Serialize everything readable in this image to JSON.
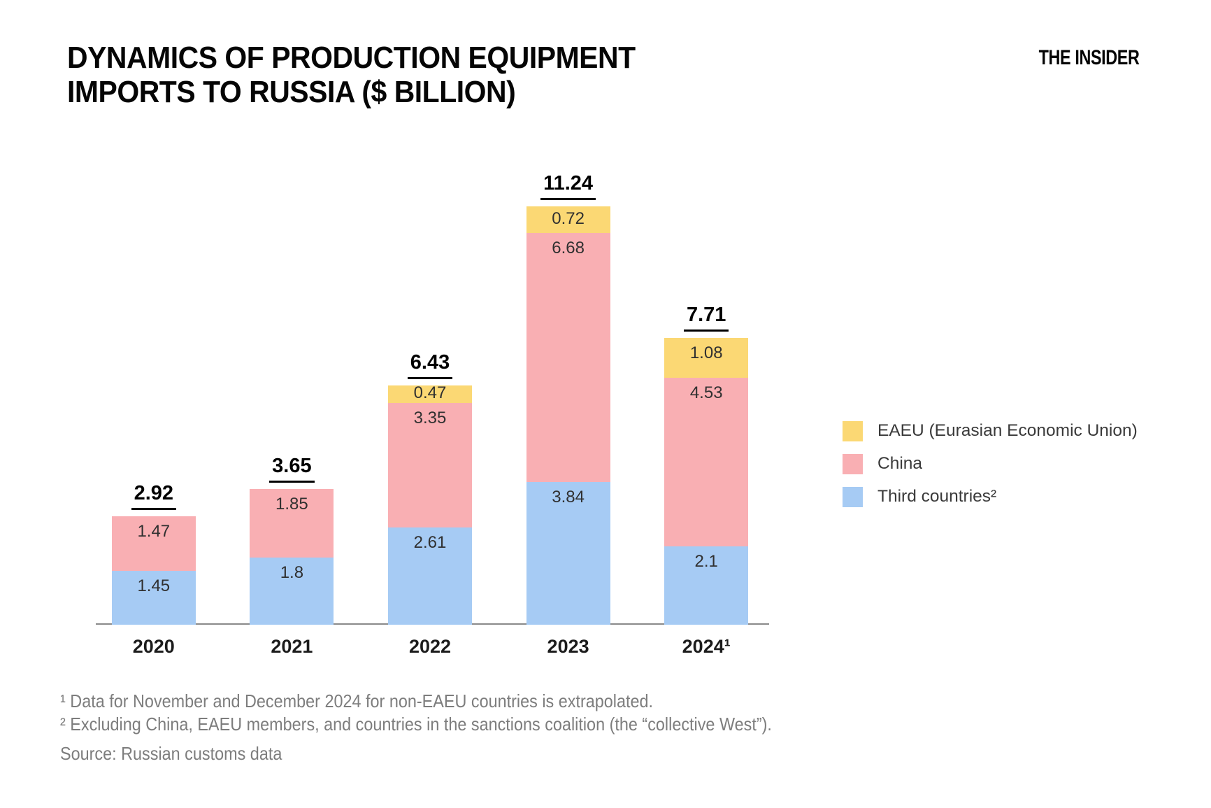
{
  "header": {
    "title_line1": "DYNAMICS OF PRODUCTION EQUIPMENT",
    "title_line2": "IMPORTS TO RUSSIA ($ BILLION)",
    "brand": "THE INSIDER"
  },
  "chart_data": {
    "type": "bar",
    "stacked": true,
    "title": "DYNAMICS OF PRODUCTION EQUIPMENT IMPORTS TO RUSSIA ($ BILLION)",
    "categories": [
      "2020",
      "2021",
      "2022",
      "2023",
      "2024¹"
    ],
    "series": [
      {
        "key": "third-countries",
        "name": "Third countries²",
        "color": "#A6CBF4",
        "values": [
          1.45,
          1.8,
          2.61,
          3.84,
          2.1
        ]
      },
      {
        "key": "china",
        "name": "China",
        "color": "#F9AFB3",
        "values": [
          1.47,
          1.85,
          3.35,
          6.68,
          4.53
        ]
      },
      {
        "key": "eaeu",
        "name": "EAEU (Eurasian Economic Union)",
        "color": "#FBD874",
        "values": [
          0,
          0,
          0.47,
          0.72,
          1.08
        ]
      }
    ],
    "totals": [
      2.92,
      3.65,
      6.43,
      11.24,
      7.71
    ],
    "ylim": [
      0,
      11.24
    ],
    "grid": false,
    "legend_position": "right",
    "value_labels": true
  },
  "legend": {
    "items": [
      {
        "label": "EAEU (Eurasian Economic Union)",
        "color": "#FBD874"
      },
      {
        "label": "China",
        "color": "#F9AFB3"
      },
      {
        "label": "Third countries²",
        "color": "#A6CBF4"
      }
    ]
  },
  "footnotes": {
    "note1": "¹ Data for November and December 2024 for non-EAEU countries is extrapolated.",
    "note2": "² Excluding China, EAEU members, and countries in the sanctions coalition (the “collective West”).",
    "source": "Source: Russian customs data"
  },
  "colors": {
    "eaeu": "#FBD874",
    "china": "#F9AFB3",
    "third_countries": "#A6CBF4",
    "axis_line": "#8A8A8A",
    "footnote_text": "#7D7D7D"
  }
}
